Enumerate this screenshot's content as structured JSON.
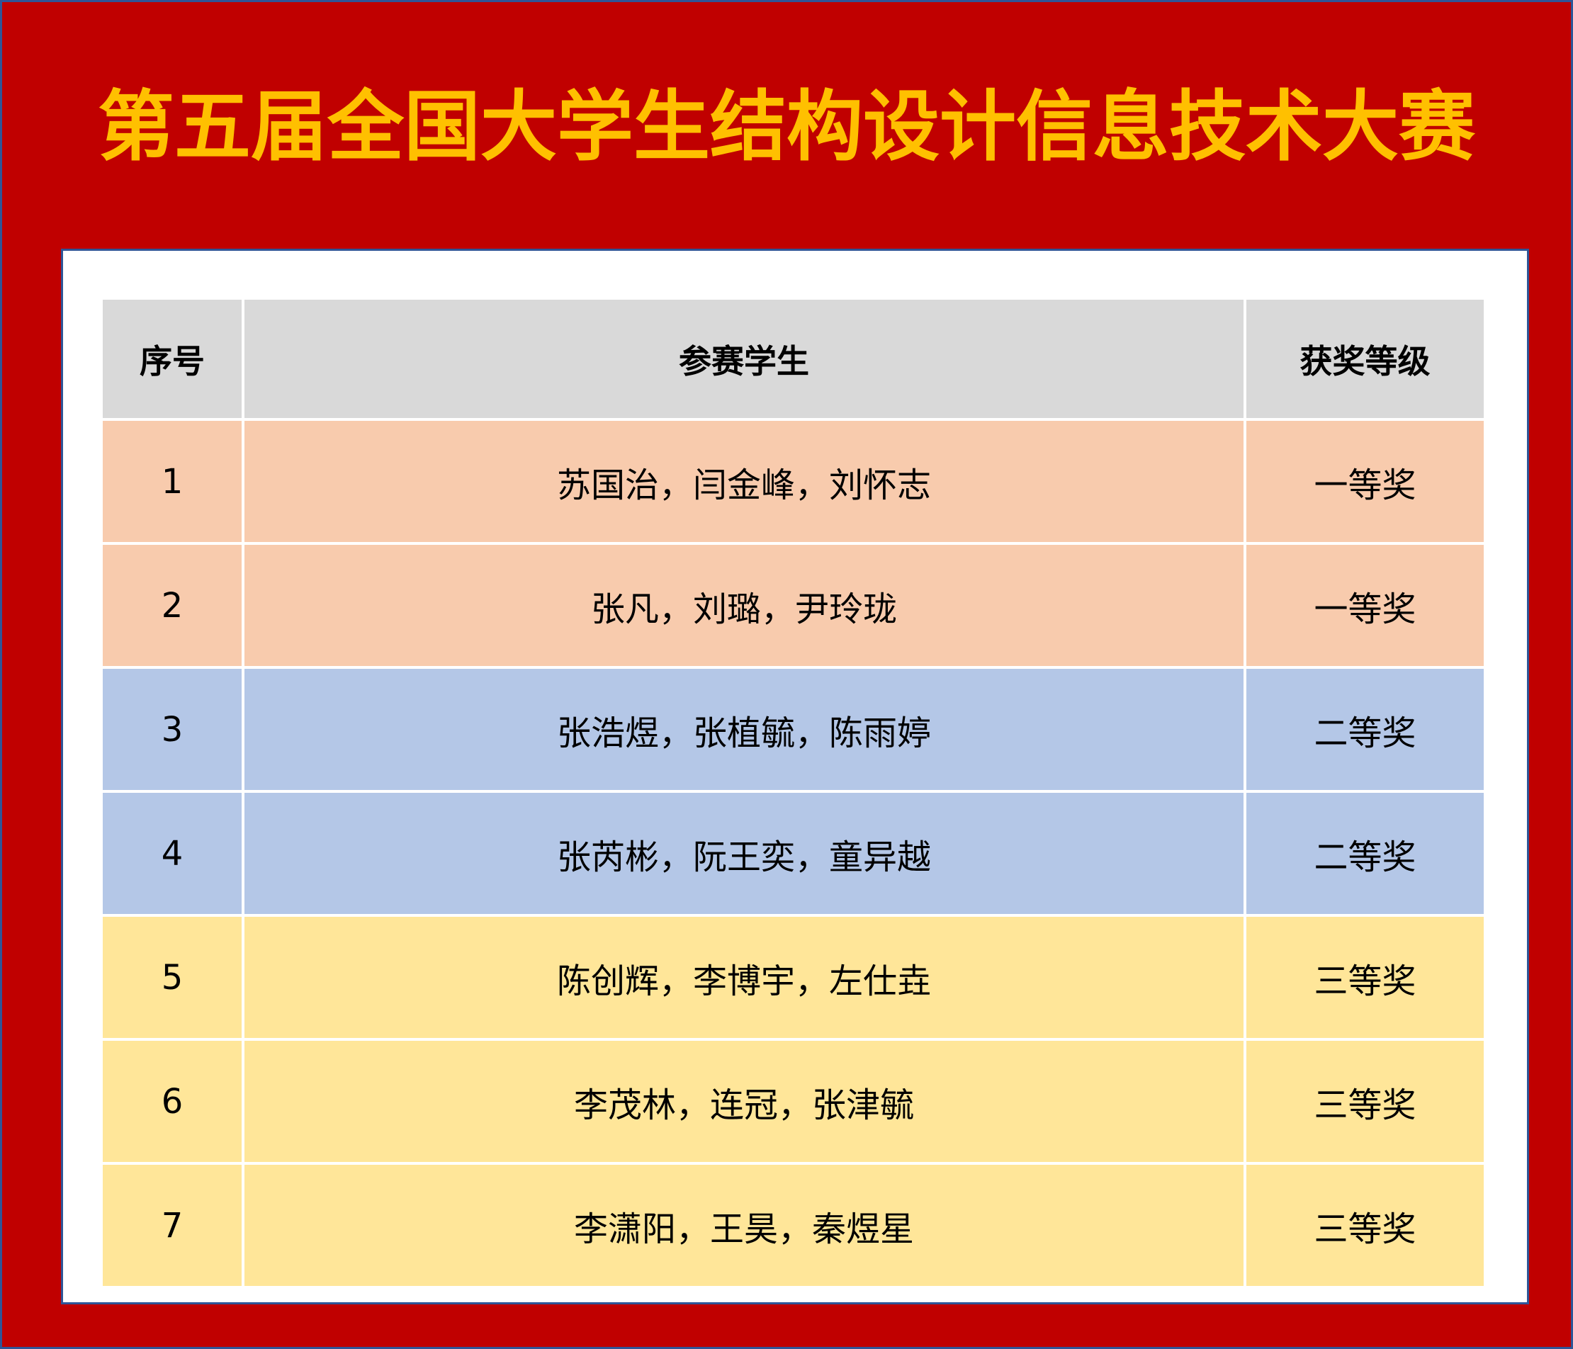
{
  "title": "第五届全国大学生结构设计信息技术大赛",
  "table": {
    "header": [
      "序号",
      "参赛学生",
      "获奖等级"
    ],
    "rows": [
      [
        "1",
        "苏国治，闫金峰，刘怀志",
        "一等奖"
      ],
      [
        "2",
        "张凡，刘璐，尹玲珑",
        "一等奖"
      ],
      [
        "3",
        "张浩煜，张植毓，陈雨婷",
        "二等奖"
      ],
      [
        "4",
        "张芮彬，阮王奕，童异越",
        "二等奖"
      ],
      [
        "5",
        "陈创辉，李博宇，左仕垚",
        "三等奖"
      ],
      [
        "6",
        "李茂林，连冠，张津毓",
        "三等奖"
      ],
      [
        "7",
        "李潇阳，王昊，秦煜星",
        "三等奖"
      ]
    ]
  }
}
